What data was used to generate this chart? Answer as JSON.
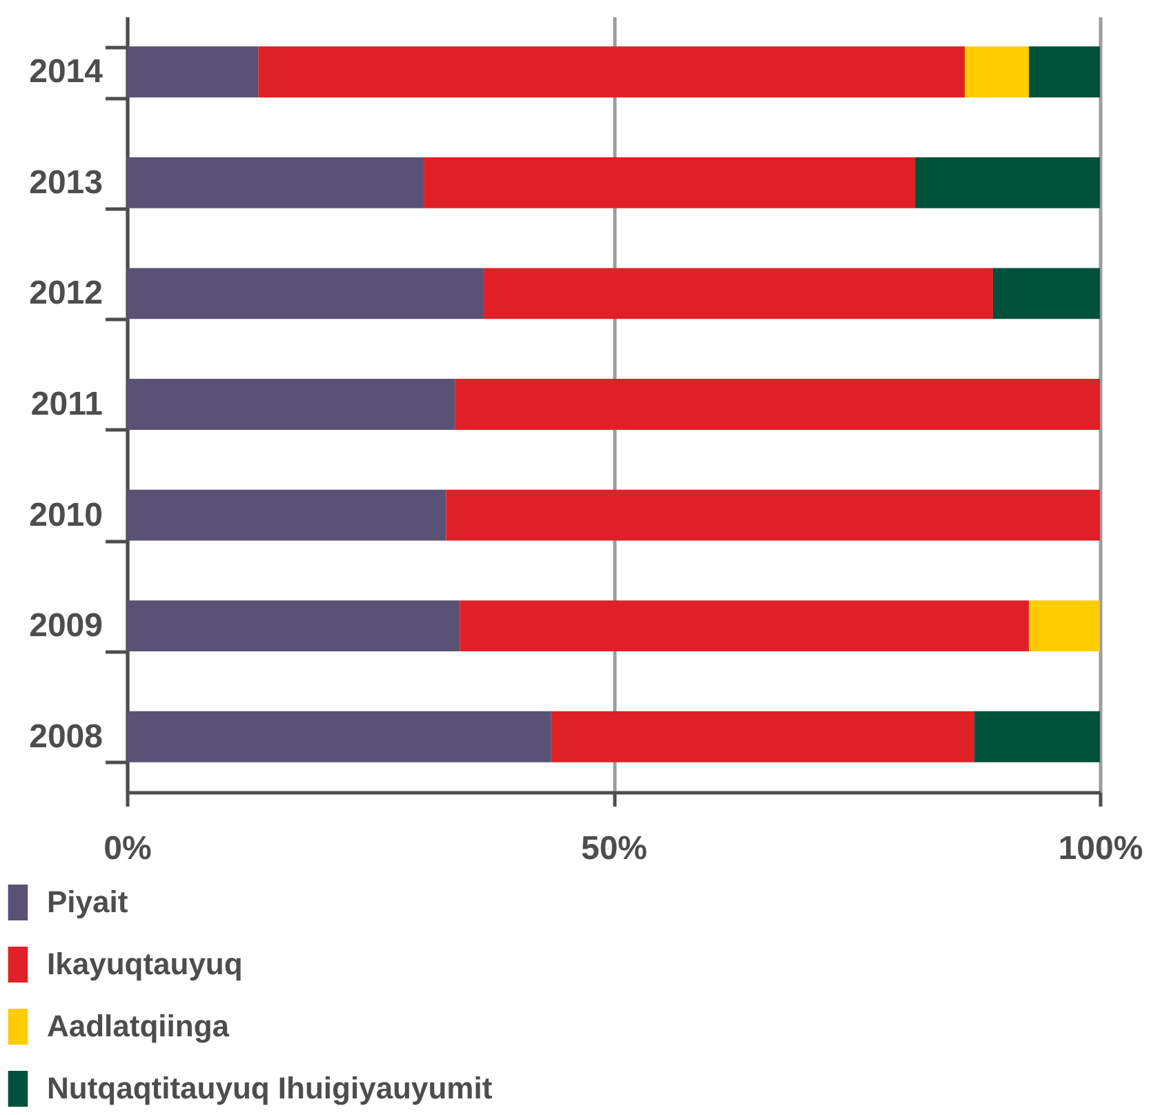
{
  "chart_data": {
    "type": "bar",
    "orientation": "horizontal",
    "stacked": true,
    "categories": [
      "2014",
      "2013",
      "2012",
      "2011",
      "2010",
      "2009",
      "2008"
    ],
    "series": [
      {
        "name": "Piyait",
        "color": "#5a5275",
        "values": [
          13.5,
          30.5,
          36.6,
          33.7,
          32.8,
          34.2,
          43.6
        ]
      },
      {
        "name": "Ikayuqtauyuq",
        "color": "#e02027",
        "values": [
          72.6,
          50.5,
          52.4,
          66.3,
          67.2,
          58.5,
          43.5
        ]
      },
      {
        "name": "Aadlatqiinga",
        "color": "#ffcc00",
        "values": [
          6.6,
          null,
          null,
          null,
          null,
          7.3,
          null
        ]
      },
      {
        "name": "Nutqaqtitauyuq Ihuigiyauyumit",
        "color": "#00513a",
        "values": [
          7.3,
          19.0,
          11.0,
          null,
          null,
          null,
          12.9
        ]
      }
    ],
    "xlim": [
      0,
      100
    ],
    "xticks": [
      {
        "value": 0,
        "label": "0%"
      },
      {
        "value": 50,
        "label": "50%"
      },
      {
        "value": 100,
        "label": "100%"
      }
    ],
    "grid": "x",
    "legend": "bottom left"
  }
}
